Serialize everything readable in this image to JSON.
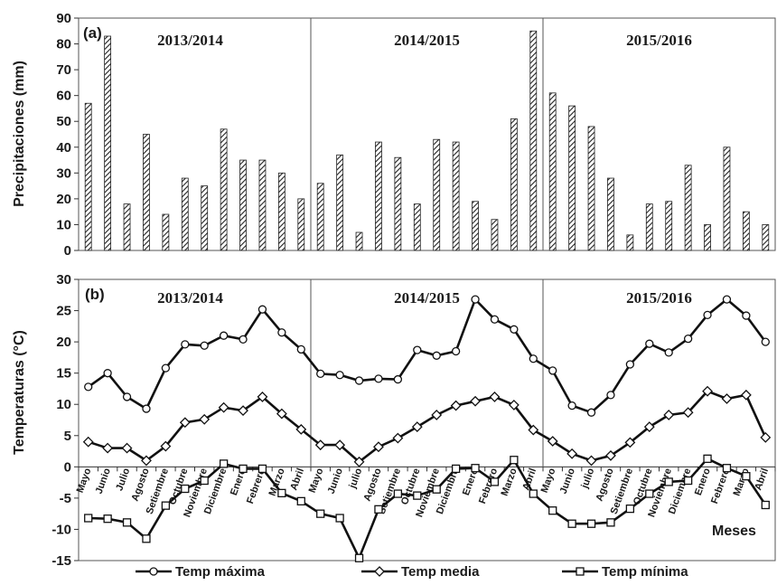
{
  "chart_data": [
    {
      "panel": "(a)",
      "type": "bar",
      "ylabel": "Precipitaciones (mm)",
      "ylim": [
        0,
        90
      ],
      "yticks": [
        0,
        10,
        20,
        30,
        40,
        50,
        60,
        70,
        80,
        90
      ],
      "periods": [
        "2013/2014",
        "2014/2015",
        "2015/2016"
      ],
      "categories": [
        "Mayo",
        "Junio",
        "Julio",
        "Agosto",
        "Setiembre",
        "Octubre",
        "Noviembre",
        "Diciembre",
        "Enero",
        "Febrero",
        "Marzo",
        "Abril",
        "Mayo",
        "Junio",
        "Julio",
        "Agosto",
        "Setiembre",
        "Octubre",
        "Noviembre",
        "Diciembre",
        "Enero",
        "Febrero",
        "Marzo",
        "Abril",
        "Mayo",
        "Junio",
        "Julio",
        "Agosto",
        "Setiembre",
        "Octubre",
        "Noviembre",
        "Diciembre",
        "Enero",
        "Febrero",
        "Marzo",
        "Abril"
      ],
      "values": [
        57,
        83,
        18,
        45,
        14,
        28,
        25,
        47,
        35,
        35,
        30,
        20,
        26,
        37,
        7,
        42,
        36,
        18,
        43,
        42,
        19,
        12,
        51,
        85,
        61,
        56,
        48,
        28,
        6,
        18,
        19,
        33,
        10,
        40,
        15,
        10
      ],
      "pattern": "diagonal hatch"
    },
    {
      "panel": "(b)",
      "type": "line",
      "ylabel": "Temperaturas (°C)",
      "xlabel": "Meses",
      "ylim": [
        -15,
        30
      ],
      "yticks": [
        -15,
        -10,
        -5,
        0,
        5,
        10,
        15,
        20,
        25,
        30
      ],
      "periods": [
        "2013/2014",
        "2014/2015",
        "2015/2016"
      ],
      "categories": [
        "Mayo",
        "Junio",
        "Julio",
        "Agosto",
        "Setiembre",
        "Octubre",
        "Noviembre",
        "Diciembre",
        "Enero",
        "Febrero",
        "Marzo",
        "Abril",
        "Mayo",
        "Junio",
        "julio",
        "Agosto",
        "Setiembre",
        "Octubre",
        "Noviembre",
        "Diciembre",
        "Enero",
        "Febrero",
        "Marzo",
        "Abril",
        "Mayo",
        "Junio",
        "julio",
        "Agosto",
        "Setiembre",
        "Octubre",
        "Noviembre",
        "Diciembre",
        "Enero",
        "Febrero",
        "Marzo",
        "Abril"
      ],
      "series": [
        {
          "name": "Temp máxima",
          "marker": "circle",
          "values": [
            12.8,
            15.0,
            11.2,
            9.3,
            15.8,
            19.6,
            19.4,
            21.0,
            20.4,
            25.2,
            21.5,
            18.8,
            14.9,
            14.7,
            13.8,
            14.1,
            14.0,
            18.7,
            17.8,
            18.5,
            26.8,
            23.6,
            22.0,
            17.3,
            15.4,
            9.8,
            8.7,
            11.5,
            16.4,
            19.7,
            18.3,
            20.5,
            24.3,
            26.8,
            24.2,
            20.0
          ]
        },
        {
          "name": "Temp media",
          "marker": "diamond",
          "values": [
            4.0,
            3.0,
            3.0,
            1.0,
            3.3,
            7.1,
            7.6,
            9.5,
            9.0,
            11.2,
            8.5,
            6.0,
            3.5,
            3.5,
            0.8,
            3.2,
            4.6,
            6.4,
            8.3,
            9.8,
            10.5,
            11.2,
            9.9,
            5.9,
            4.1,
            2.1,
            1.0,
            1.8,
            3.9,
            6.4,
            8.3,
            8.7,
            12.1,
            10.9,
            11.5,
            4.7
          ]
        },
        {
          "name": "Temp mínima",
          "marker": "square",
          "values": [
            -8.2,
            -8.3,
            -8.9,
            -11.5,
            -6.2,
            -3.5,
            -2.2,
            0.5,
            -0.3,
            -0.3,
            -4.2,
            -5.5,
            -7.5,
            -8.2,
            -14.6,
            -6.8,
            -4.3,
            -4.6,
            -3.6,
            -0.3,
            -0.2,
            -2.4,
            1.1,
            -4.3,
            -7.0,
            -9.1,
            -9.1,
            -8.9,
            -6.7,
            -4.3,
            -2.4,
            -2.2,
            1.3,
            -0.2,
            -1.5,
            -6.1
          ]
        }
      ]
    }
  ]
}
